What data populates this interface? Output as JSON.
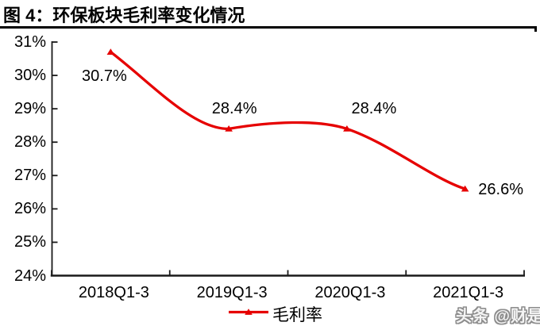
{
  "title": "图 4：环保板块毛利率变化情况",
  "watermark": "头条 @财是",
  "chart_data": {
    "type": "line",
    "title": "环保板块毛利率变化情况",
    "categories": [
      "2018Q1-3",
      "2019Q1-3",
      "2020Q1-3",
      "2021Q1-3"
    ],
    "series": [
      {
        "name": "毛利率",
        "values": [
          30.7,
          28.4,
          28.4,
          26.6
        ],
        "color": "#e60000"
      }
    ],
    "point_labels": [
      "30.7%",
      "28.4%",
      "28.4%",
      "26.6%"
    ],
    "y_ticks": [
      "31%",
      "30%",
      "29%",
      "28%",
      "27%",
      "26%",
      "25%",
      "24%"
    ],
    "y_tick_values": [
      31,
      30,
      29,
      28,
      27,
      26,
      25,
      24
    ],
    "ylim": [
      24,
      31
    ],
    "xlabel": "",
    "ylabel": "",
    "grid": false,
    "smooth": true,
    "marker": "triangle",
    "legend_position": "bottom",
    "legend_label": "毛利率",
    "axis_color": "#1a1a1a"
  }
}
